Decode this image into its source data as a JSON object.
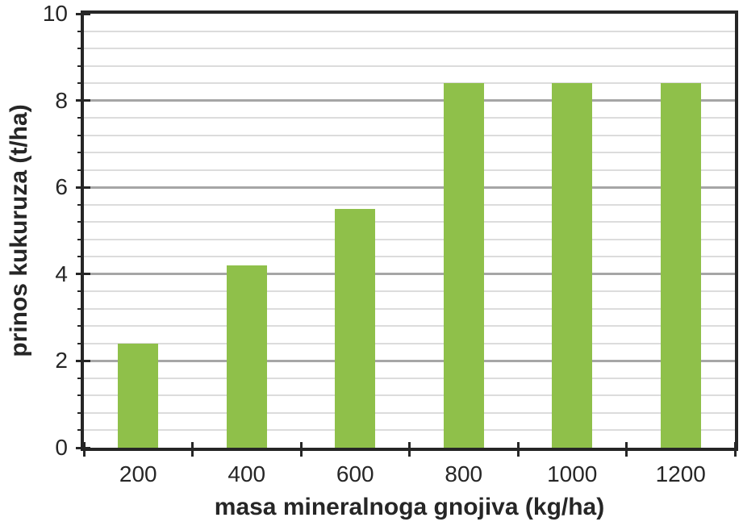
{
  "chart_data": {
    "type": "bar",
    "title": "",
    "xlabel": "masa mineralnoga gnojiva (kg/ha)",
    "ylabel": "prinos kukuruza (t/ha)",
    "categories": [
      "200",
      "400",
      "600",
      "800",
      "1000",
      "1200"
    ],
    "values": [
      2.4,
      4.2,
      5.5,
      8.4,
      8.4,
      8.4
    ],
    "series_name": "prinos kukuruza",
    "ylim": [
      0,
      10
    ],
    "yticks": [
      0,
      2,
      4,
      6,
      8,
      10
    ],
    "y_major_unit": 2,
    "y_minor_unit": 0.4,
    "grid": "horizontal, minor and major lines",
    "legend": "none",
    "colors": {
      "bar": "#8FC04A",
      "minor_gridline": "#dcdcdc",
      "major_gridline": "#a6a6a6",
      "axis": "#262626",
      "text": "#262626",
      "background": "#ffffff"
    }
  }
}
